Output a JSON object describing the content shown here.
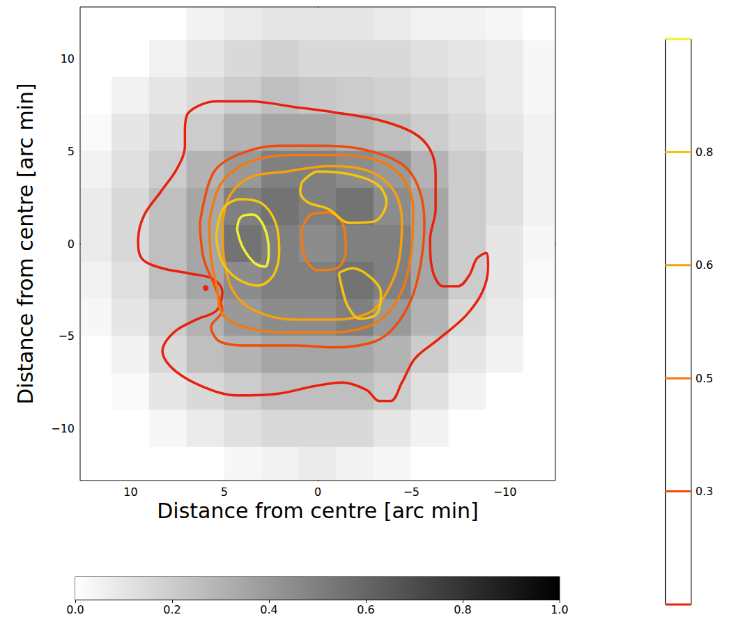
{
  "chart_data": {
    "type": "contour",
    "xlabel": "Distance from centre [arc min]",
    "ylabel": "Distance from centre [arc min]",
    "xlim": [
      12.7,
      -12.7
    ],
    "ylim": [
      -12.8,
      12.8
    ],
    "xticks": [
      10,
      5,
      0,
      {
        "value": -5,
        "label": "−5"
      },
      {
        "value": -10,
        "label": "−10"
      }
    ],
    "yticks": [
      {
        "value": -10,
        "label": "−10"
      },
      {
        "value": -5,
        "label": "−5"
      },
      0,
      5,
      10
    ],
    "grid": false,
    "image": {
      "x": [
        12,
        10,
        8,
        6,
        4,
        2,
        0,
        -2,
        -4,
        -6,
        -8,
        -10,
        -12
      ],
      "y": [
        12,
        10,
        8,
        6,
        4,
        2,
        0,
        -2,
        -4,
        -6,
        -8,
        -10,
        -12
      ],
      "values": [
        [
          0,
          0,
          0,
          0.05,
          0.08,
          0.1,
          0.1,
          0.1,
          0.08,
          0.05,
          0.05,
          0.03,
          0
        ],
        [
          0,
          0,
          0.05,
          0.1,
          0.15,
          0.18,
          0.15,
          0.15,
          0.15,
          0.12,
          0.1,
          0.08,
          0.03
        ],
        [
          0,
          0.05,
          0.1,
          0.15,
          0.2,
          0.25,
          0.22,
          0.2,
          0.18,
          0.15,
          0.12,
          0.08,
          0.03
        ],
        [
          0.02,
          0.1,
          0.15,
          0.2,
          0.3,
          0.35,
          0.35,
          0.3,
          0.25,
          0.2,
          0.15,
          0.1,
          0.05
        ],
        [
          0.05,
          0.12,
          0.2,
          0.3,
          0.4,
          0.5,
          0.5,
          0.45,
          0.4,
          0.3,
          0.2,
          0.12,
          0.05
        ],
        [
          0.08,
          0.15,
          0.25,
          0.35,
          0.5,
          0.55,
          0.5,
          0.55,
          0.45,
          0.35,
          0.2,
          0.12,
          0.05
        ],
        [
          0.08,
          0.15,
          0.25,
          0.35,
          0.55,
          0.5,
          0.45,
          0.5,
          0.5,
          0.35,
          0.2,
          0.1,
          0.03
        ],
        [
          0.05,
          0.12,
          0.25,
          0.35,
          0.45,
          0.5,
          0.5,
          0.55,
          0.5,
          0.35,
          0.2,
          0.1,
          0.02
        ],
        [
          0.03,
          0.1,
          0.2,
          0.3,
          0.4,
          0.45,
          0.45,
          0.5,
          0.4,
          0.3,
          0.15,
          0.08,
          0
        ],
        [
          0,
          0.05,
          0.15,
          0.25,
          0.3,
          0.35,
          0.35,
          0.35,
          0.3,
          0.2,
          0.1,
          0.05,
          0
        ],
        [
          0,
          0.02,
          0.1,
          0.15,
          0.2,
          0.25,
          0.25,
          0.25,
          0.2,
          0.12,
          0.05,
          0,
          0
        ],
        [
          0,
          0,
          0.03,
          0.08,
          0.12,
          0.15,
          0.15,
          0.15,
          0.1,
          0.05,
          0,
          0,
          0
        ],
        [
          0,
          0,
          0,
          0,
          0.03,
          0.05,
          0.08,
          0.05,
          0.03,
          0,
          0,
          0,
          0
        ]
      ]
    },
    "colorbar": {
      "range": [
        0,
        1
      ],
      "ticks": [
        {
          "value": 0,
          "label": "0.0"
        },
        0.2,
        0.4,
        0.6,
        0.8,
        {
          "value": 1,
          "label": "1.0"
        }
      ]
    },
    "contour_colorbar": {
      "levels": [
        null,
        0.3,
        0.5,
        0.6,
        0.8,
        null
      ]
    },
    "contours": [
      {
        "color": "#e8200c",
        "paths": [
          [
            [
              7.1,
              6.2
            ],
            [
              6.9,
              7.1
            ],
            [
              5.4,
              7.7
            ],
            [
              3.6,
              7.7
            ],
            [
              1.3,
              7.4
            ],
            [
              -0.9,
              7.1
            ],
            [
              -3.2,
              6.7
            ],
            [
              -5.1,
              6.0
            ],
            [
              -6.0,
              5.1
            ],
            [
              -6.3,
              3.8
            ],
            [
              -6.3,
              1.9
            ],
            [
              -6.0,
              0.2
            ],
            [
              -6.1,
              -1.3
            ],
            [
              -6.7,
              -2.3
            ],
            [
              -7.5,
              -2.3
            ],
            [
              -8.1,
              -1.7
            ],
            [
              -8.5,
              -0.8
            ],
            [
              -9.0,
              -0.5
            ],
            [
              -9.1,
              -1.3
            ],
            [
              -8.8,
              -2.6
            ],
            [
              -7.9,
              -3.9
            ],
            [
              -6.4,
              -5.2
            ],
            [
              -5.2,
              -6.2
            ],
            [
              -4.5,
              -7.5
            ],
            [
              -3.9,
              -8.5
            ],
            [
              -3.3,
              -8.5
            ],
            [
              -2.6,
              -7.9
            ],
            [
              -1.3,
              -7.5
            ],
            [
              0.2,
              -7.7
            ],
            [
              2.1,
              -8.1
            ],
            [
              4.3,
              -8.2
            ],
            [
              6.2,
              -7.7
            ],
            [
              7.7,
              -6.8
            ],
            [
              8.3,
              -5.8
            ],
            [
              7.7,
              -4.8
            ],
            [
              6.5,
              -4.1
            ],
            [
              5.4,
              -3.6
            ],
            [
              5.1,
              -2.6
            ],
            [
              5.6,
              -1.9
            ],
            [
              6.9,
              -1.6
            ],
            [
              8.4,
              -1.3
            ],
            [
              9.4,
              -0.8
            ],
            [
              9.6,
              0.2
            ],
            [
              9.3,
              1.5
            ],
            [
              8.4,
              2.8
            ],
            [
              7.5,
              4.1
            ],
            [
              7.1,
              5.3
            ],
            [
              7.1,
              6.2
            ]
          ],
          [
            [
              6.1,
              -2.35
            ],
            [
              6.0,
              -2.3
            ],
            [
              5.9,
              -2.4
            ],
            [
              6.0,
              -2.5
            ],
            [
              6.1,
              -2.35
            ]
          ]
        ]
      },
      {
        "color": "#ef4b0c",
        "paths": [
          [
            [
              6.3,
              1.1
            ],
            [
              5.6,
              3.8
            ],
            [
              4.3,
              4.8
            ],
            [
              2.1,
              5.3
            ],
            [
              -0.2,
              5.3
            ],
            [
              -2.4,
              5.1
            ],
            [
              -4.5,
              4.3
            ],
            [
              -5.4,
              3.0
            ],
            [
              -5.7,
              1.1
            ],
            [
              -5.5,
              -1.1
            ],
            [
              -5.0,
              -3.0
            ],
            [
              -4.1,
              -4.5
            ],
            [
              -3.0,
              -5.3
            ],
            [
              -0.9,
              -5.6
            ],
            [
              1.3,
              -5.5
            ],
            [
              3.6,
              -5.5
            ],
            [
              5.2,
              -5.3
            ],
            [
              5.7,
              -4.5
            ],
            [
              5.1,
              -3.6
            ],
            [
              5.5,
              -2.3
            ],
            [
              6.1,
              -0.8
            ],
            [
              6.3,
              1.1
            ]
          ]
        ]
      },
      {
        "color": "#f27a0e",
        "paths": [
          [
            [
              5.8,
              1.1
            ],
            [
              5.2,
              3.2
            ],
            [
              3.7,
              4.4
            ],
            [
              1.3,
              4.8
            ],
            [
              -0.9,
              4.8
            ],
            [
              -3.2,
              4.5
            ],
            [
              -4.5,
              3.6
            ],
            [
              -5.1,
              1.9
            ],
            [
              -5.0,
              -0.4
            ],
            [
              -4.6,
              -2.3
            ],
            [
              -3.7,
              -3.8
            ],
            [
              -2.6,
              -4.5
            ],
            [
              -0.6,
              -4.8
            ],
            [
              1.7,
              -4.8
            ],
            [
              3.9,
              -4.5
            ],
            [
              5.1,
              -3.8
            ],
            [
              5.4,
              -2.3
            ],
            [
              5.7,
              -0.8
            ],
            [
              5.8,
              1.1
            ]
          ],
          [
            [
              0.86,
              0.75
            ],
            [
              0.37,
              1.58
            ],
            [
              -0.56,
              1.69
            ],
            [
              -1.39,
              0.94
            ],
            [
              -1.5,
              -0.38
            ],
            [
              -1.01,
              -1.32
            ],
            [
              0,
              -1.43
            ],
            [
              0.75,
              -0.56
            ],
            [
              0.86,
              0.75
            ]
          ]
        ]
      },
      {
        "color": "#f5a00c",
        "paths": [
          [
            [
              5.1,
              1.1
            ],
            [
              4.7,
              2.6
            ],
            [
              3.6,
              3.6
            ],
            [
              1.7,
              3.9
            ],
            [
              -0.6,
              4.2
            ],
            [
              -2.8,
              3.9
            ],
            [
              -4.1,
              2.8
            ],
            [
              -4.5,
              1.1
            ],
            [
              -4.3,
              -1.1
            ],
            [
              -3.7,
              -2.6
            ],
            [
              -2.8,
              -3.7
            ],
            [
              -0.9,
              -4.1
            ],
            [
              1.3,
              -4.1
            ],
            [
              3.4,
              -3.6
            ],
            [
              4.5,
              -2.6
            ],
            [
              5.0,
              -0.9
            ],
            [
              5.1,
              1.1
            ]
          ]
        ]
      },
      {
        "color": "#f5c40c",
        "paths": [
          [
            [
              5.43,
              0.38
            ],
            [
              5.06,
              1.88
            ],
            [
              4.12,
              2.41
            ],
            [
              2.99,
              2.18
            ],
            [
              2.25,
              1.13
            ],
            [
              2.06,
              -0.38
            ],
            [
              2.36,
              -1.69
            ],
            [
              3.18,
              -2.26
            ],
            [
              4.31,
              -1.88
            ],
            [
              5.13,
              -0.94
            ],
            [
              5.43,
              0.38
            ]
          ],
          [
            [
              0.86,
              3.31
            ],
            [
              0,
              3.91
            ],
            [
              -1.69,
              3.76
            ],
            [
              -3.18,
              3.2
            ],
            [
              -3.67,
              2.26
            ],
            [
              -3.0,
              1.2
            ],
            [
              -1.69,
              1.13
            ],
            [
              -0.56,
              1.88
            ],
            [
              0.56,
              2.26
            ],
            [
              0.94,
              2.82
            ],
            [
              0.86,
              3.31
            ]
          ],
          [
            [
              -1.12,
              -1.58
            ],
            [
              -1.87,
              -1.32
            ],
            [
              -2.81,
              -1.8
            ],
            [
              -3.37,
              -2.63
            ],
            [
              -3.18,
              -3.76
            ],
            [
              -2.25,
              -4.06
            ],
            [
              -1.61,
              -3.38
            ],
            [
              -1.31,
              -2.44
            ],
            [
              -1.12,
              -1.58
            ]
          ]
        ]
      },
      {
        "color": "#f0f030",
        "paths": [
          [
            [
              4.31,
              0.75
            ],
            [
              4.12,
              1.43
            ],
            [
              3.48,
              1.58
            ],
            [
              2.88,
              0.94
            ],
            [
              2.62,
              -0.38
            ],
            [
              2.81,
              -1.24
            ],
            [
              3.37,
              -1.05
            ],
            [
              4.01,
              -0.19
            ],
            [
              4.31,
              0.75
            ]
          ]
        ]
      }
    ]
  }
}
